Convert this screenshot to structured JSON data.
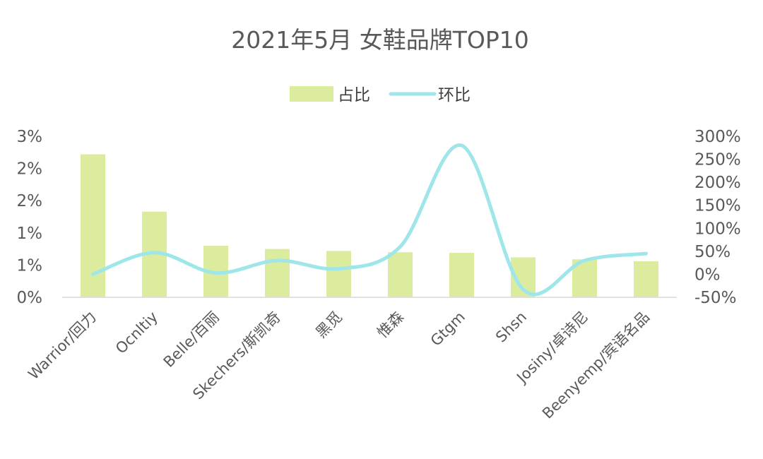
{
  "chart_data": {
    "type": "bar",
    "title": "2021年5月 女鞋品牌TOP10",
    "categories": [
      "Warrior/回力",
      "Ocnltiy",
      "Belle/百丽",
      "Skechers/斯凯奇",
      "黑觅",
      "惟森",
      "Gtgm",
      "Shsn",
      "Josiny/卓诗尼",
      "Beenyemp/宾语名品"
    ],
    "series": [
      {
        "name": "占比",
        "type": "bar",
        "axis": "left",
        "color": "#dcec9e",
        "values": [
          0.0222,
          0.0133,
          0.008,
          0.0075,
          0.0072,
          0.007,
          0.0069,
          0.0062,
          0.0059,
          0.0056
        ]
      },
      {
        "name": "环比",
        "type": "line",
        "axis": "right",
        "color": "#9ee6ea",
        "values": [
          0.0,
          0.47,
          0.03,
          0.3,
          0.12,
          0.6,
          2.8,
          -0.33,
          0.3,
          0.45
        ]
      }
    ],
    "y_left": {
      "ylim": [
        0,
        0.025
      ],
      "ticks": [
        0,
        0.005,
        0.01,
        0.015,
        0.02,
        0.025
      ],
      "tick_labels": [
        "0%",
        "1%",
        "1%",
        "2%",
        "2%",
        "3%"
      ]
    },
    "y_right": {
      "ylim": [
        -0.5,
        3.0
      ],
      "ticks": [
        -0.5,
        0,
        0.5,
        1.0,
        1.5,
        2.0,
        2.5,
        3.0
      ],
      "tick_labels": [
        "-50%",
        "0%",
        "50%",
        "100%",
        "150%",
        "200%",
        "250%",
        "300%"
      ]
    },
    "legend_position": "top-center",
    "grid": false
  }
}
